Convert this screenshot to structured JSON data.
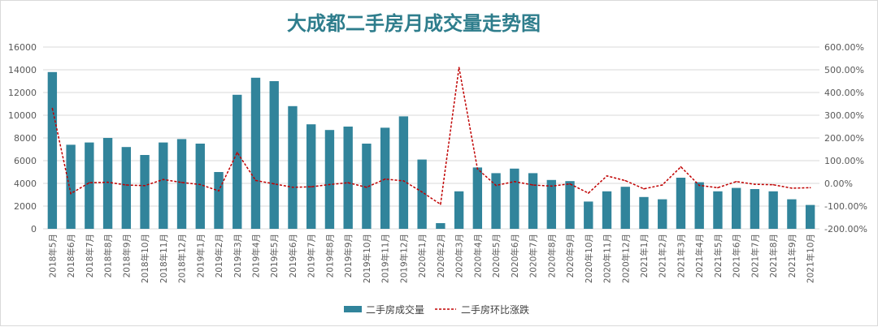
{
  "chart_data": {
    "type": "bar",
    "title": "大成都二手房月成交量走势图",
    "categories": [
      "2018年5月",
      "2018年6月",
      "2018年7月",
      "2018年8月",
      "2018年9月",
      "2018年10月",
      "2018年11月",
      "2018年12月",
      "2019年1月",
      "2019年2月",
      "2019年3月",
      "2019年4月",
      "2019年5月",
      "2019年6月",
      "2019年7月",
      "2019年8月",
      "2019年9月",
      "2019年10月",
      "2019年11月",
      "2019年12月",
      "2020年1月",
      "2020年2月",
      "2020年3月",
      "2020年4月",
      "2020年5月",
      "2020年6月",
      "2020年7月",
      "2020年8月",
      "2020年9月",
      "2020年10月",
      "2020年11月",
      "2020年12月",
      "2021年1月",
      "2021年2月",
      "2021年3月",
      "2021年4月",
      "2021年5月",
      "2021年6月",
      "2021年7月",
      "2021年8月",
      "2021年9月",
      "2021年10月"
    ],
    "series": [
      {
        "name": "二手房成交量",
        "type": "bar",
        "axis": "left",
        "color": "#31849b",
        "values": [
          13800,
          7400,
          7600,
          8000,
          7200,
          6500,
          7600,
          7900,
          7500,
          5000,
          11800,
          13300,
          13000,
          10800,
          9200,
          8700,
          9000,
          7500,
          8900,
          9900,
          6100,
          500,
          3300,
          5400,
          4900,
          5300,
          4900,
          4300,
          4200,
          2400,
          3300,
          3700,
          2800,
          2600,
          4500,
          4100,
          3300,
          3600,
          3500,
          3300,
          2600,
          2100
        ]
      },
      {
        "name": "二手房环比涨跌",
        "type": "line",
        "axis": "right",
        "color": "#c00000",
        "dash": "dashed",
        "values": [
          330,
          -45,
          3,
          5,
          -7,
          -10,
          17,
          4,
          -5,
          -33,
          136,
          13,
          -2,
          -17,
          -15,
          -5,
          3,
          -17,
          19,
          11,
          -38,
          -92,
          510,
          64,
          -9,
          8,
          -7,
          -12,
          -2,
          -43,
          33,
          12,
          -24,
          -7,
          73,
          -9,
          -19,
          8,
          -4,
          -6,
          -21,
          -19
        ]
      }
    ],
    "y_left": {
      "min": 0,
      "max": 16000,
      "step": 2000,
      "ticks": [
        "0",
        "2000",
        "4000",
        "6000",
        "8000",
        "10000",
        "12000",
        "14000",
        "16000"
      ]
    },
    "y_right": {
      "min": -200,
      "max": 600,
      "step": 100,
      "ticks": [
        "-200.00%",
        "-100.00%",
        "0.00%",
        "100.00%",
        "200.00%",
        "300.00%",
        "400.00%",
        "500.00%",
        "600.00%"
      ]
    },
    "xlabel": "",
    "ylabel": "",
    "grid": true,
    "legend_position": "bottom",
    "colors": {
      "title": "#2e7d8c",
      "grid": "#d9d9d9",
      "tick_text": "#595959"
    }
  }
}
